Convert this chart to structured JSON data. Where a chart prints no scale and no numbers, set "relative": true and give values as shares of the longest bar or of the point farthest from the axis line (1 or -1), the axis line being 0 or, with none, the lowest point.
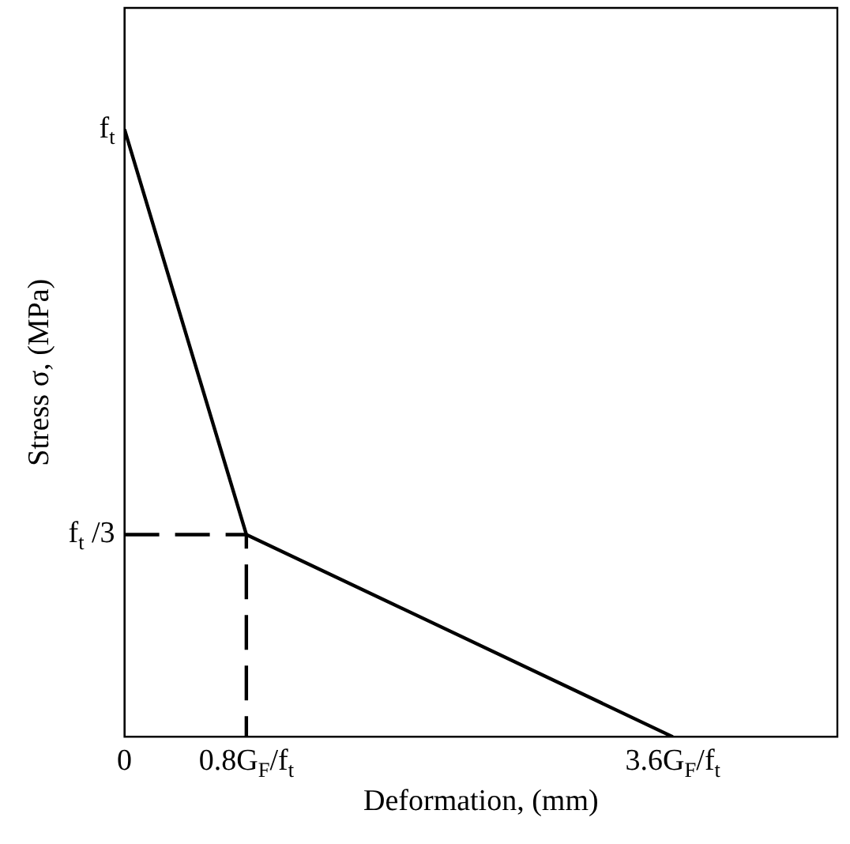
{
  "chart_data": {
    "type": "line",
    "xlabel": "Deformation, (mm)",
    "ylabel": "Stress σ, (MPa)",
    "xlim": [
      0,
      4.68
    ],
    "xticks": [
      0,
      {
        "value": 0.8,
        "label": "0.8G$_{F}$/f$_{t}$"
      },
      {
        "value": 3.6,
        "label": "3.6G$_{F}$/f$_{t}$"
      }
    ],
    "relative": true,
    "annotations": [
      {
        "text": "f$_{t}$",
        "x": 0,
        "y": 1
      },
      {
        "text": "f$_{t}$ /3",
        "x": 0,
        "y": 0.333
      }
    ],
    "series": [
      {
        "color": "#000000",
        "x": [
          0,
          0.8,
          3.6
        ],
        "values": [
          1,
          0.333,
          0
        ],
        "line_style": "solid"
      },
      {
        "color": "#000000",
        "x": [
          0,
          0.8,
          0.8
        ],
        "values": [
          0.333,
          0.333,
          0
        ],
        "line_style": "dashed"
      }
    ],
    "marker": "none",
    "grid": false,
    "legend": false
  }
}
